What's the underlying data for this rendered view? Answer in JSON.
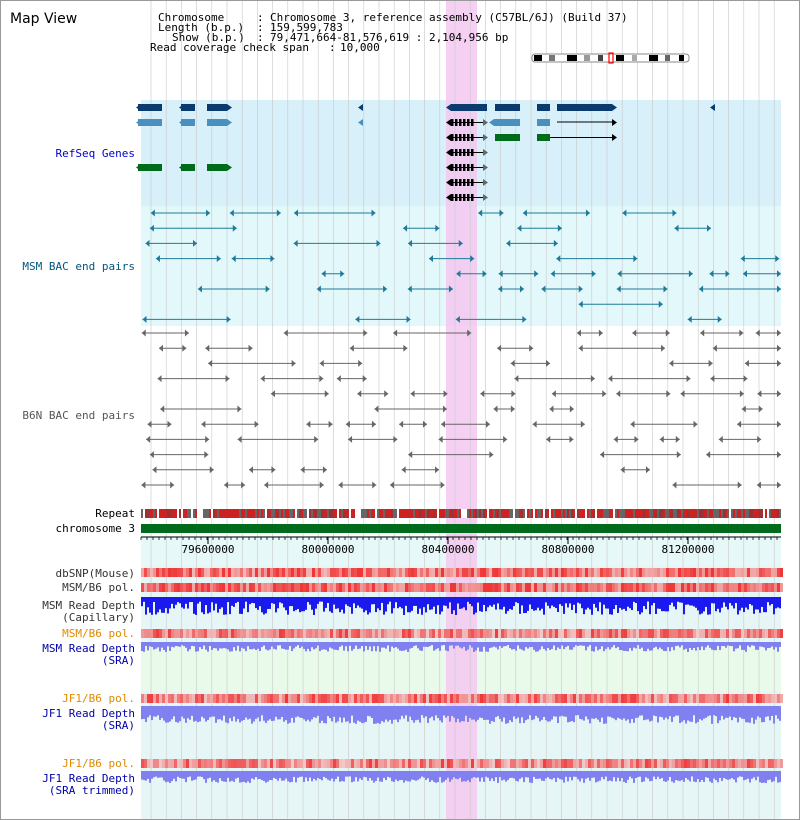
{
  "app": {
    "title": "Map View"
  },
  "info": {
    "chromosome_key": "Chromosome",
    "chromosome_val": "Chromosome 3, reference assembly (C57BL/6J) (Build 37)",
    "length_key": "Length (b.p.)",
    "length_val": "159,599,783",
    "show_key": "Show (b.p.)",
    "show_val": "79,471,664-81,576,619 : 2,104,956 bp",
    "coverage_key": "Read coverage check span",
    "coverage_val": "10,000"
  },
  "tracks": {
    "refseq": {
      "label": "RefSeq Genes",
      "color": "#0000cc"
    },
    "msm_bac": {
      "label": "MSM BAC end pairs",
      "color": "#00557f"
    },
    "b6n_bac": {
      "label": "B6N BAC end pairs",
      "color": "#555555"
    },
    "repeat": {
      "label": "Repeat"
    },
    "chromosome": {
      "label": "chromosome 3"
    },
    "dbsnp": {
      "label": "dbSNP(Mouse)"
    },
    "msm_b6_pol1": {
      "label": "MSM/B6 pol."
    },
    "msm_depth_cap": {
      "label1": "MSM Read Depth",
      "label2": "(Capillary)"
    },
    "msm_b6_pol2": {
      "label": "MSM/B6 pol.",
      "color": "#e08a00"
    },
    "msm_depth_sra": {
      "label1": "MSM Read Depth",
      "label2": "(SRA)"
    },
    "jf1_b6_pol1": {
      "label": "JF1/B6 pol.",
      "color": "#e08a00"
    },
    "jf1_depth_sra": {
      "label1": "JF1 Read Depth",
      "label2": "(SRA)"
    },
    "jf1_b6_pol2": {
      "label": "JF1/B6 pol.",
      "color": "#e08a00"
    },
    "jf1_depth_trim": {
      "label1": "JF1 Read Depth",
      "label2": "(SRA trimmed)"
    }
  },
  "axis": {
    "ticks": [
      "79600000",
      "80000000",
      "80400000",
      "80800000",
      "81200000"
    ]
  },
  "colors": {
    "highlight": "#f5c8f0",
    "refseq_bg": "#d8f0fa",
    "msm_bg": "#e2f8fa",
    "gene_dark": "#0b3a6e",
    "gene_mid": "#4a90bf",
    "gene_green": "#006b1a",
    "chrom_green": "#006b1a",
    "depth_blue": "#1a1aee",
    "depth_light": "#8080f0",
    "pol_red": "#e02020"
  }
}
